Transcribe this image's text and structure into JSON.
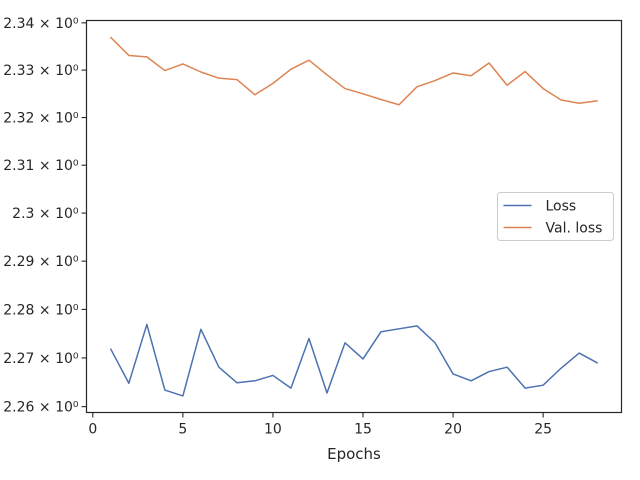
{
  "chart_data": {
    "type": "line",
    "title": "",
    "xlabel": "Epochs",
    "ylabel": "",
    "y_scale": "log",
    "x": [
      1,
      2,
      3,
      4,
      5,
      6,
      7,
      8,
      9,
      10,
      11,
      12,
      13,
      14,
      15,
      16,
      17,
      18,
      19,
      20,
      21,
      22,
      23,
      24,
      25,
      26,
      27,
      28
    ],
    "xlim": [
      -0.35,
      29.35
    ],
    "ylim": [
      2.2588,
      2.3405
    ],
    "x_ticks": [
      0,
      5,
      10,
      15,
      20,
      25
    ],
    "x_tick_labels": [
      "0",
      "5",
      "10",
      "15",
      "20",
      "25"
    ],
    "y_ticks": [
      2.26,
      2.27,
      2.28,
      2.29,
      2.3,
      2.31,
      2.32,
      2.33,
      2.34
    ],
    "y_tick_labels": [
      "2.26 × 10⁰",
      "2.27 × 10⁰",
      "2.28 × 10⁰",
      "2.29 × 10⁰",
      "2.3 × 10⁰",
      "2.31 × 10⁰",
      "2.32 × 10⁰",
      "2.33 × 10⁰",
      "2.34 × 10⁰"
    ],
    "grid": false,
    "legend_position": "center-right",
    "series": [
      {
        "name": "Loss",
        "color": "#4c72b0",
        "values": [
          2.2718,
          2.2648,
          2.2769,
          2.2634,
          2.2622,
          2.2759,
          2.2681,
          2.2649,
          2.2653,
          2.2664,
          2.2638,
          2.274,
          2.2628,
          2.2731,
          2.2698,
          2.2754,
          2.276,
          2.2766,
          2.2731,
          2.2667,
          2.2653,
          2.2672,
          2.2681,
          2.2638,
          2.2644,
          2.2679,
          2.271,
          2.269
        ]
      },
      {
        "name": "Val. loss",
        "color": "#dd8452",
        "values": [
          2.3369,
          2.3331,
          2.3328,
          2.3299,
          2.3313,
          2.3296,
          2.3283,
          2.328,
          2.3248,
          2.3272,
          2.3302,
          2.3321,
          2.329,
          2.3261,
          2.325,
          2.3238,
          2.3227,
          2.3265,
          2.3278,
          2.3294,
          2.3288,
          2.3315,
          2.3268,
          2.3297,
          2.3261,
          2.3237,
          2.323,
          2.3235
        ]
      }
    ]
  }
}
